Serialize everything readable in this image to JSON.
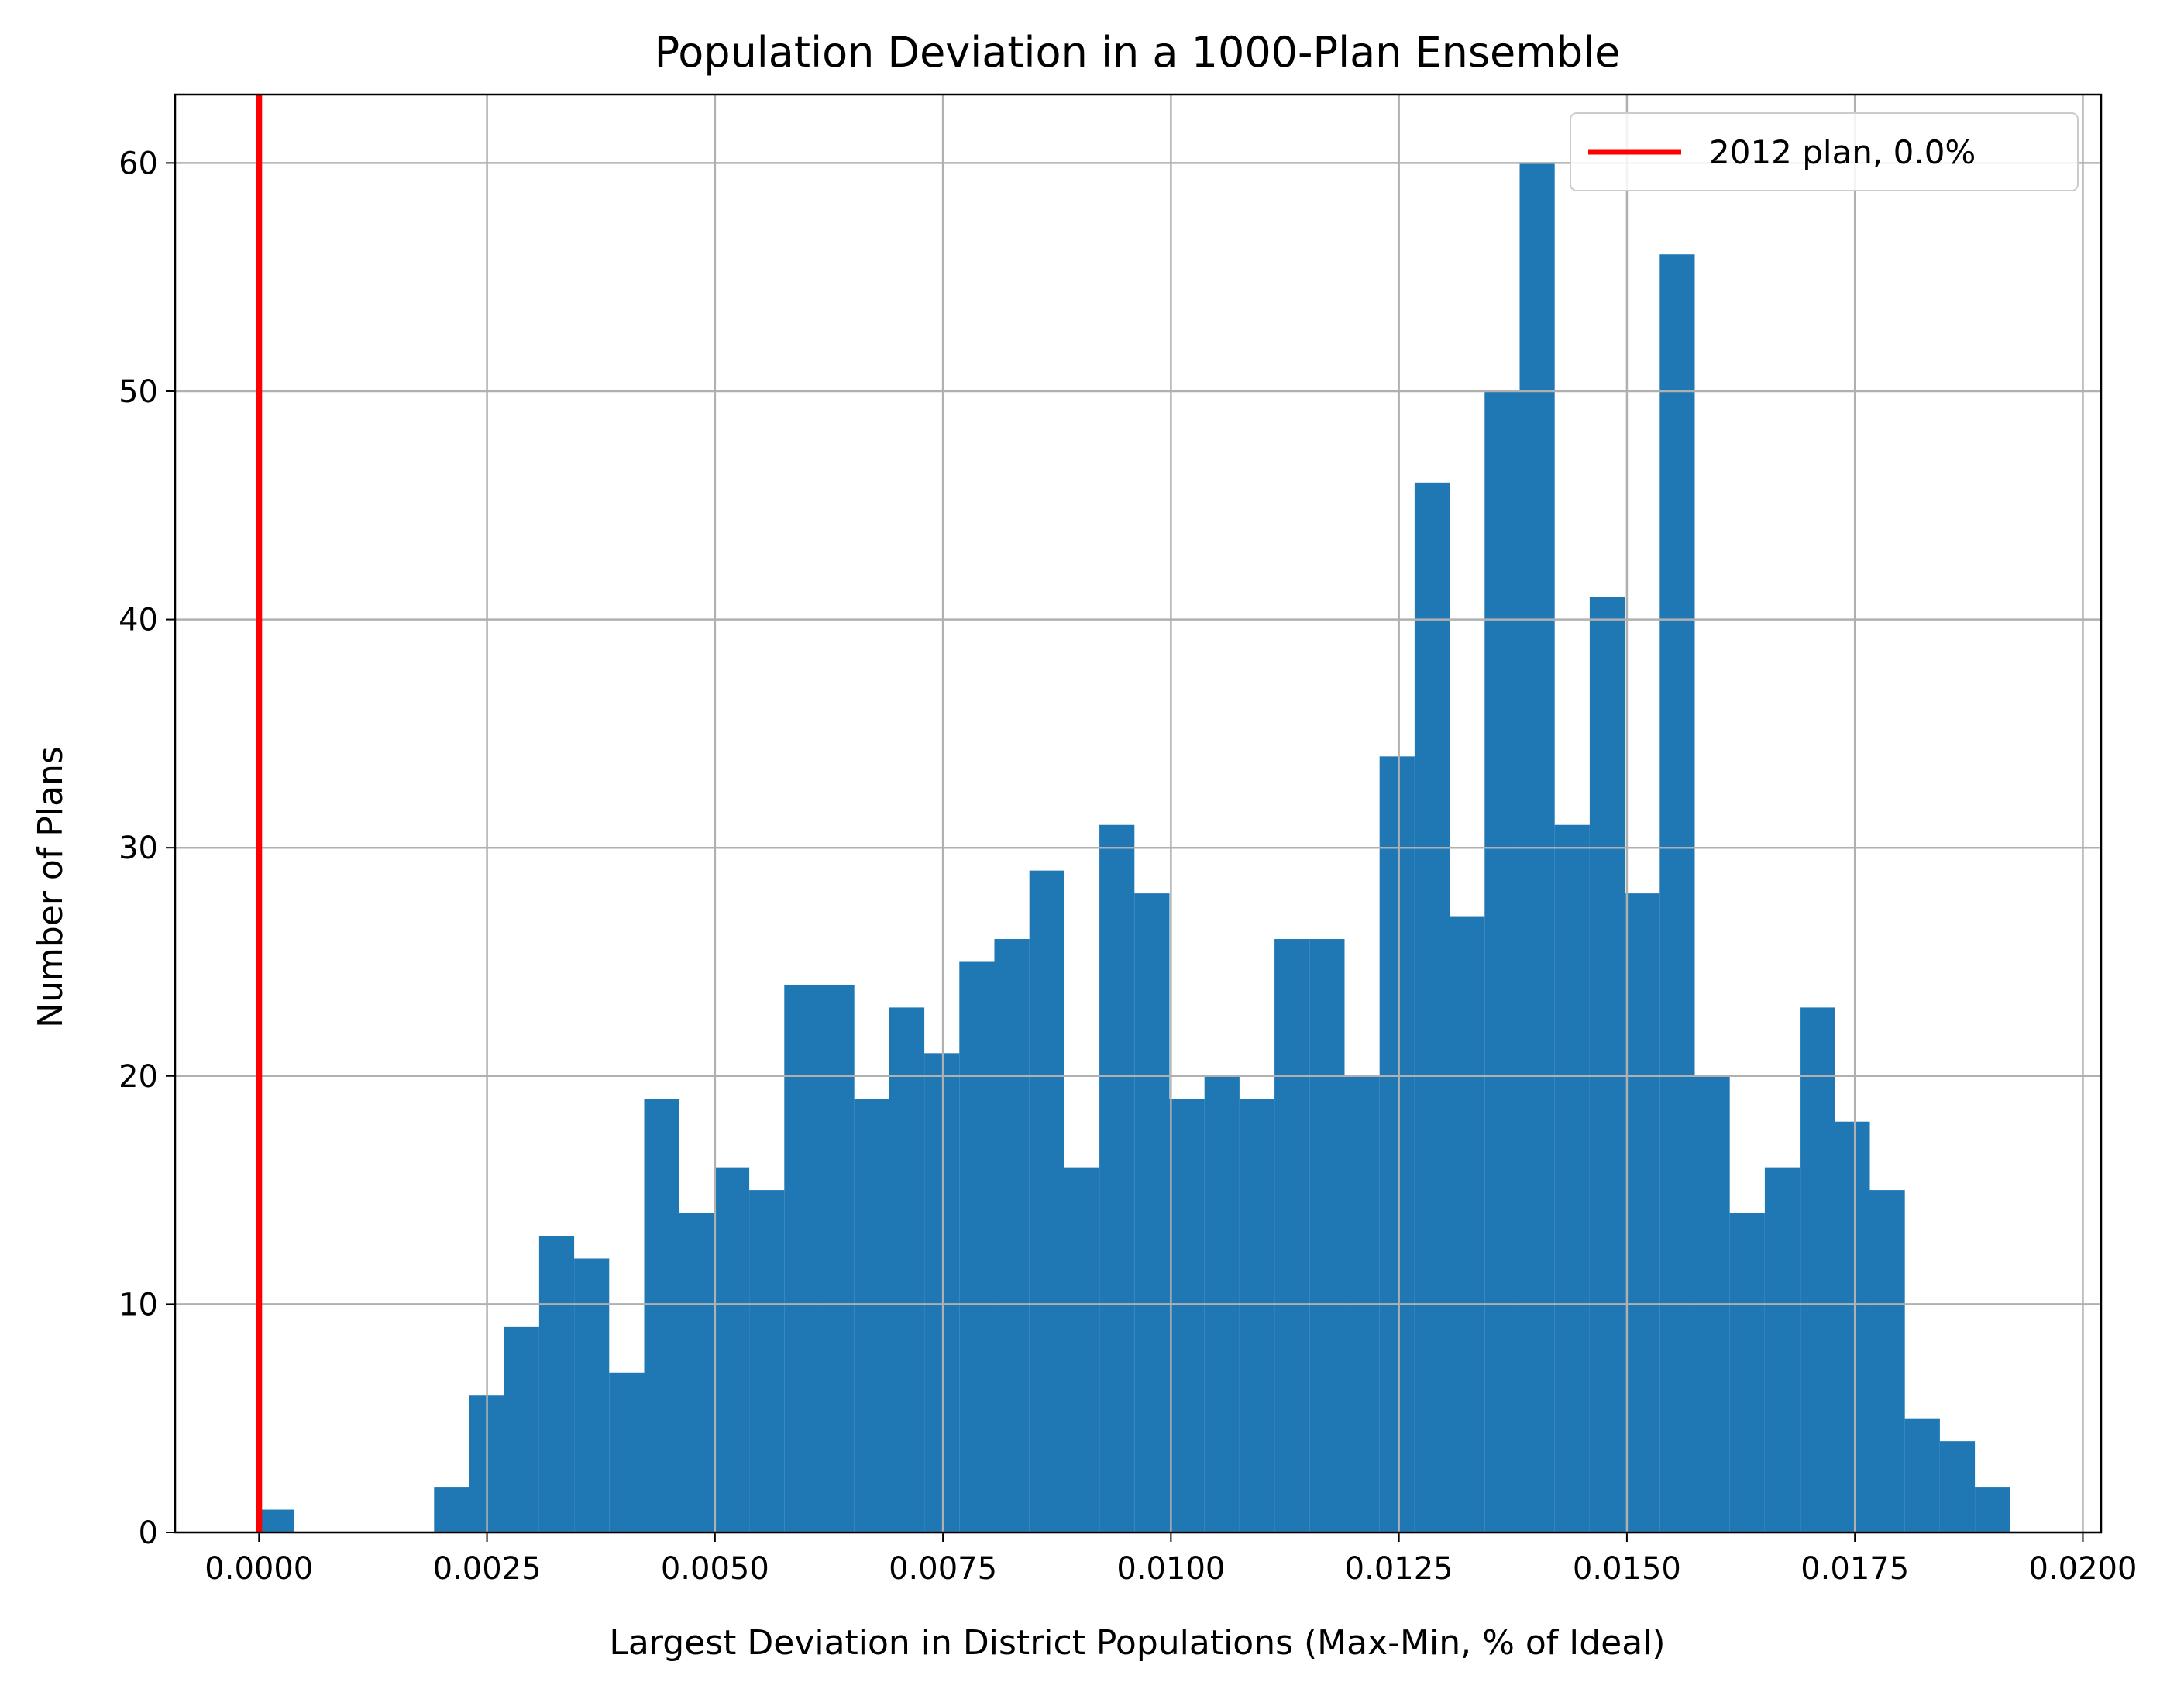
{
  "chart_data": {
    "type": "bar",
    "title": "Population Deviation in a 1000-Plan Ensemble",
    "xlabel": "Largest Deviation in District Populations (Max-Min, % of Ideal)",
    "ylabel": "Number of Plans",
    "xlim": [
      -0.00092,
      0.0202
    ],
    "ylim": [
      0,
      63
    ],
    "xticks": [
      "0.0000",
      "0.0025",
      "0.0050",
      "0.0075",
      "0.0100",
      "0.0125",
      "0.0150",
      "0.0175",
      "0.0200"
    ],
    "yticks": [
      "0",
      "10",
      "20",
      "30",
      "40",
      "50",
      "60"
    ],
    "grid": true,
    "legend_position": "top-right",
    "bins": {
      "start": 0.0,
      "width": 0.000384,
      "counts": [
        1,
        0,
        0,
        0,
        0,
        2,
        6,
        9,
        13,
        12,
        7,
        19,
        14,
        16,
        15,
        24,
        24,
        19,
        23,
        21,
        25,
        26,
        29,
        16,
        31,
        28,
        19,
        20,
        19,
        26,
        26,
        20,
        34,
        46,
        27,
        50,
        60,
        31,
        41,
        28,
        56,
        20,
        14,
        16,
        23,
        18,
        15,
        5,
        4,
        2
      ]
    },
    "vline": {
      "x": 0.0,
      "label": "2012 plan, 0.0%",
      "color": "#ff0000"
    },
    "bar_color": "#1f77b4"
  }
}
